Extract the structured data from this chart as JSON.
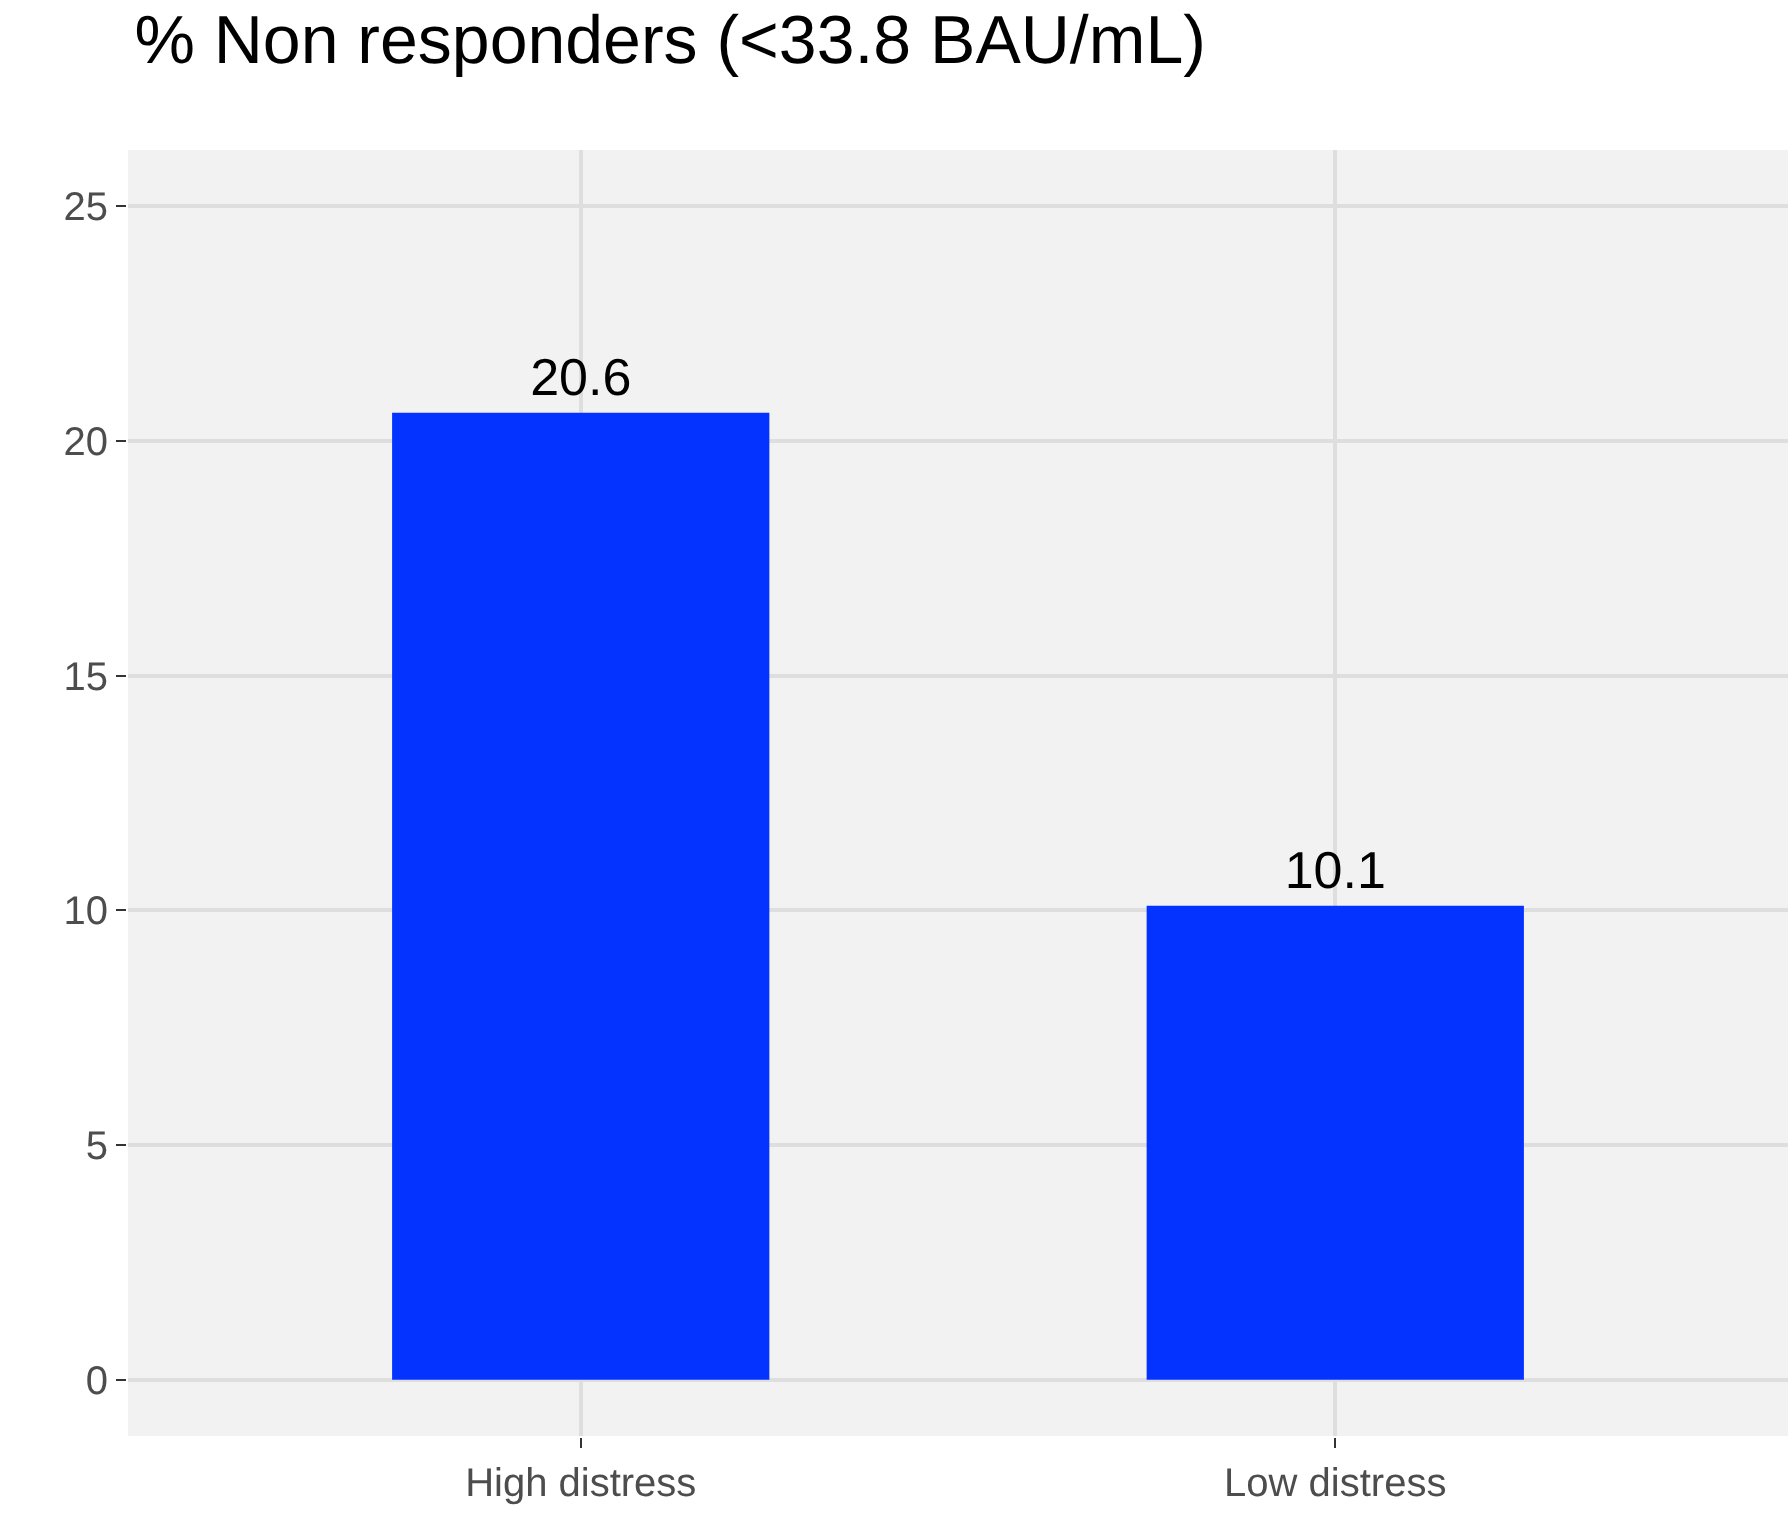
{
  "chart_data": {
    "type": "bar",
    "title": "% Non responders (<33.8 BAU/mL)",
    "categories": [
      "High distress",
      "Low distress"
    ],
    "values": [
      20.6,
      10.1
    ],
    "color": "#0433ff",
    "ylim": [
      -1.2,
      26.2
    ],
    "yticks": [
      0,
      5,
      10,
      15,
      20,
      25
    ],
    "grid": true,
    "data_labels": true,
    "legend": false
  }
}
